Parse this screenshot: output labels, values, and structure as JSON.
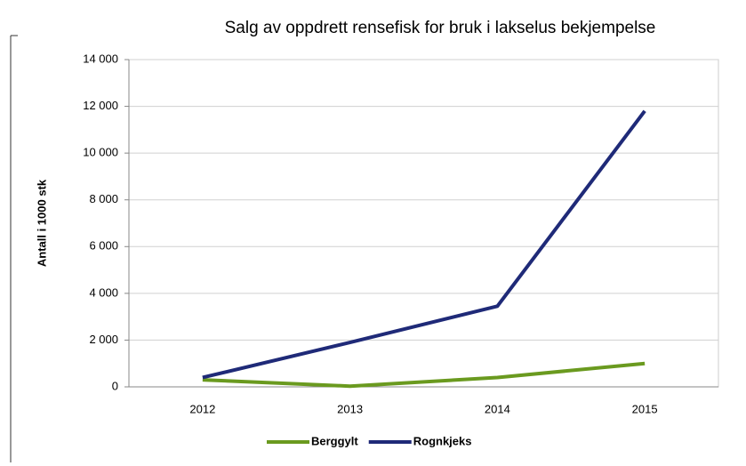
{
  "chart_data": {
    "type": "line",
    "title": "Salg av oppdrett rensefisk for bruk i lakselus bekjempelse",
    "y_label": "Antall i 1000 stk",
    "categories": [
      "2012",
      "2013",
      "2014",
      "2015"
    ],
    "series": [
      {
        "name": "Berggylt",
        "color": "#6a9a1f",
        "values": [
          300,
          30,
          400,
          1000
        ]
      },
      {
        "name": "Rognkjeks",
        "color": "#1f2a78",
        "values": [
          400,
          1900,
          3450,
          11800
        ]
      }
    ],
    "ylim": [
      0,
      14000
    ],
    "yticks": [
      0,
      {
        "value": 2000,
        "label": "2 000"
      },
      {
        "value": 4000,
        "label": "4 000"
      },
      {
        "value": 6000,
        "label": "6 000"
      },
      {
        "value": 8000,
        "label": "8 000"
      },
      {
        "value": 10000,
        "label": "10 000"
      },
      {
        "value": 12000,
        "label": "12 000"
      },
      {
        "value": 14000,
        "label": "14 000"
      }
    ],
    "grid": true,
    "legend": "bottom"
  }
}
